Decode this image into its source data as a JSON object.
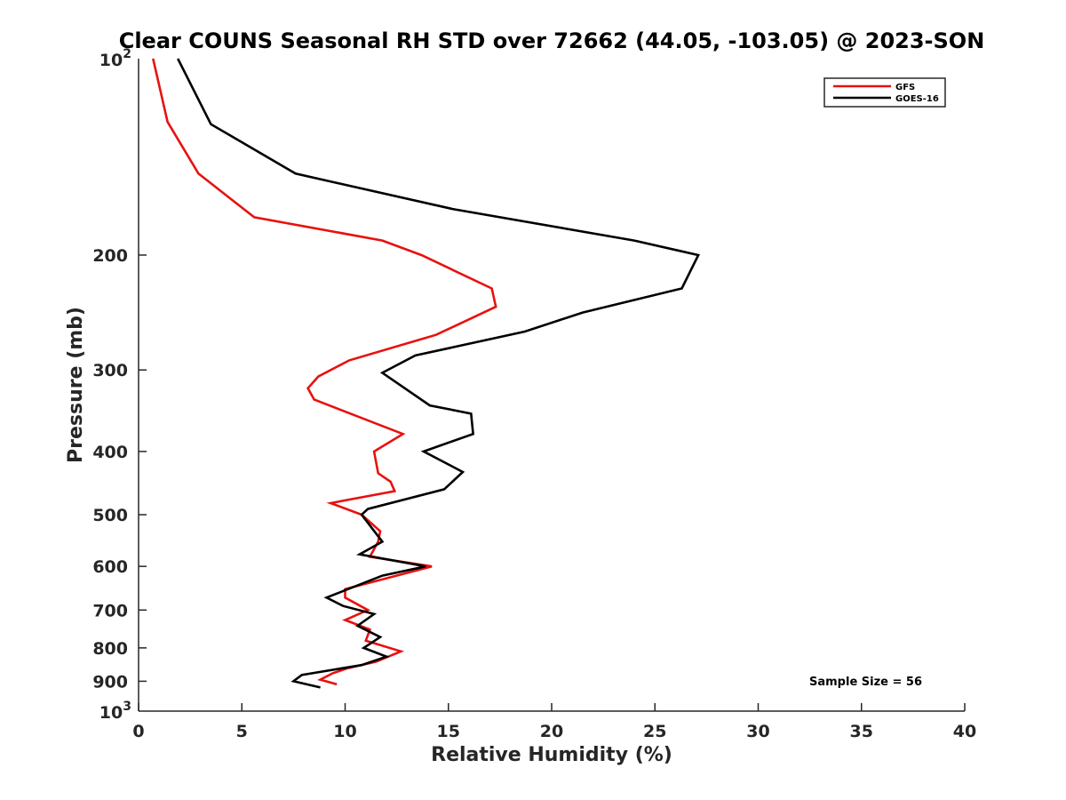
{
  "chart_data": {
    "type": "line",
    "title": "Clear COUNS Seasonal RH STD over 72662 (44.05, -103.05) @ 2023-SON",
    "xlabel": "Relative Humidity (%)",
    "ylabel": "Pressure (mb)",
    "xlim": [
      0,
      40
    ],
    "ylim": [
      100,
      1000
    ],
    "yscale": "log",
    "y_reversed": true,
    "x_ticks": [
      0,
      5,
      10,
      15,
      20,
      25,
      30,
      35,
      40
    ],
    "x_tick_labels": [
      "0",
      "5",
      "10",
      "15",
      "20",
      "25",
      "30",
      "35",
      "40"
    ],
    "y_ticks": [
      200,
      300,
      400,
      500,
      600,
      700,
      800,
      900
    ],
    "y_tick_labels": [
      "200",
      "300",
      "400",
      "500",
      "600",
      "700",
      "800",
      "900"
    ],
    "y_ticks_power": [
      {
        "value": 100,
        "base": "10",
        "exp": "2"
      },
      {
        "value": 1000,
        "base": "10",
        "exp": "3"
      }
    ],
    "grid": false,
    "legend_position": "top-right",
    "annotation": "Sample Size = 56",
    "series": [
      {
        "name": "GFS",
        "color": "#e8110f",
        "points": [
          {
            "p": 100,
            "v": 0.7
          },
          {
            "p": 125,
            "v": 1.4
          },
          {
            "p": 150,
            "v": 2.9
          },
          {
            "p": 175,
            "v": 5.6
          },
          {
            "p": 190,
            "v": 11.8
          },
          {
            "p": 200,
            "v": 13.7
          },
          {
            "p": 225,
            "v": 17.1
          },
          {
            "p": 240,
            "v": 17.3
          },
          {
            "p": 265,
            "v": 14.4
          },
          {
            "p": 290,
            "v": 10.2
          },
          {
            "p": 307,
            "v": 8.7
          },
          {
            "p": 320,
            "v": 8.2
          },
          {
            "p": 333,
            "v": 8.5
          },
          {
            "p": 376,
            "v": 12.8
          },
          {
            "p": 400,
            "v": 11.4
          },
          {
            "p": 432,
            "v": 11.6
          },
          {
            "p": 445,
            "v": 12.2
          },
          {
            "p": 460,
            "v": 12.4
          },
          {
            "p": 480,
            "v": 9.3
          },
          {
            "p": 500,
            "v": 10.8
          },
          {
            "p": 530,
            "v": 11.7
          },
          {
            "p": 550,
            "v": 11.6
          },
          {
            "p": 580,
            "v": 11.2
          },
          {
            "p": 600,
            "v": 14.2
          },
          {
            "p": 650,
            "v": 10.0
          },
          {
            "p": 670,
            "v": 10.0
          },
          {
            "p": 700,
            "v": 11.1
          },
          {
            "p": 725,
            "v": 10.0
          },
          {
            "p": 750,
            "v": 11.2
          },
          {
            "p": 780,
            "v": 11.0
          },
          {
            "p": 810,
            "v": 12.7
          },
          {
            "p": 840,
            "v": 11.5
          },
          {
            "p": 860,
            "v": 10.1
          },
          {
            "p": 875,
            "v": 9.4
          },
          {
            "p": 895,
            "v": 8.8
          },
          {
            "p": 910,
            "v": 9.6
          }
        ]
      },
      {
        "name": "GOES-16",
        "color": "#000000",
        "points": [
          {
            "p": 100,
            "v": 1.9
          },
          {
            "p": 126,
            "v": 3.5
          },
          {
            "p": 150,
            "v": 7.6
          },
          {
            "p": 170,
            "v": 15.2
          },
          {
            "p": 190,
            "v": 24.0
          },
          {
            "p": 200,
            "v": 27.1
          },
          {
            "p": 225,
            "v": 26.3
          },
          {
            "p": 245,
            "v": 21.5
          },
          {
            "p": 262,
            "v": 18.7
          },
          {
            "p": 285,
            "v": 13.4
          },
          {
            "p": 303,
            "v": 11.8
          },
          {
            "p": 340,
            "v": 14.1
          },
          {
            "p": 350,
            "v": 16.1
          },
          {
            "p": 376,
            "v": 16.2
          },
          {
            "p": 400,
            "v": 13.8
          },
          {
            "p": 430,
            "v": 15.7
          },
          {
            "p": 457,
            "v": 14.8
          },
          {
            "p": 490,
            "v": 11.1
          },
          {
            "p": 500,
            "v": 10.8
          },
          {
            "p": 550,
            "v": 11.8
          },
          {
            "p": 575,
            "v": 10.7
          },
          {
            "p": 600,
            "v": 13.9
          },
          {
            "p": 620,
            "v": 11.8
          },
          {
            "p": 670,
            "v": 9.1
          },
          {
            "p": 690,
            "v": 9.9
          },
          {
            "p": 710,
            "v": 11.4
          },
          {
            "p": 740,
            "v": 10.6
          },
          {
            "p": 770,
            "v": 11.7
          },
          {
            "p": 800,
            "v": 10.9
          },
          {
            "p": 825,
            "v": 12.0
          },
          {
            "p": 850,
            "v": 10.8
          },
          {
            "p": 880,
            "v": 7.9
          },
          {
            "p": 900,
            "v": 7.5
          },
          {
            "p": 920,
            "v": 8.8
          }
        ]
      }
    ]
  }
}
